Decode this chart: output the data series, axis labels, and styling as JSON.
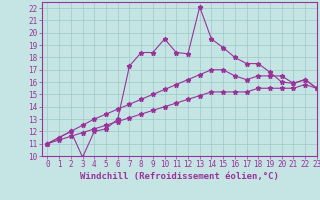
{
  "xlabel": "Windchill (Refroidissement éolien,°C)",
  "bg_color": "#c5e5e5",
  "line_color": "#993399",
  "xlim": [
    -0.5,
    23
  ],
  "ylim": [
    10,
    22.5
  ],
  "xticks": [
    0,
    1,
    2,
    3,
    4,
    5,
    6,
    7,
    8,
    9,
    10,
    11,
    12,
    13,
    14,
    15,
    16,
    17,
    18,
    19,
    20,
    21,
    22,
    23
  ],
  "yticks": [
    10,
    11,
    12,
    13,
    14,
    15,
    16,
    17,
    18,
    19,
    20,
    21,
    22
  ],
  "line1_x": [
    0,
    1,
    2,
    3,
    4,
    5,
    6,
    7,
    8,
    9,
    10,
    11,
    12,
    13,
    14,
    15,
    16,
    17,
    18,
    19,
    20,
    21,
    22,
    23
  ],
  "line1_y": [
    11.0,
    11.5,
    12.0,
    9.9,
    12.0,
    12.2,
    13.0,
    17.3,
    18.4,
    18.4,
    19.5,
    18.4,
    18.3,
    22.1,
    19.5,
    18.8,
    18.0,
    17.5,
    17.5,
    16.8,
    16.0,
    15.9,
    16.2,
    15.5
  ],
  "line2_x": [
    0,
    1,
    2,
    3,
    4,
    5,
    6,
    7,
    8,
    9,
    10,
    11,
    12,
    13,
    14,
    15,
    16,
    17,
    18,
    19,
    20,
    21,
    22,
    23
  ],
  "line2_y": [
    11.0,
    11.5,
    12.0,
    12.5,
    13.0,
    13.4,
    13.8,
    14.2,
    14.6,
    15.0,
    15.4,
    15.8,
    16.2,
    16.6,
    17.0,
    17.0,
    16.5,
    16.2,
    16.5,
    16.5,
    16.5,
    15.9,
    16.2,
    15.5
  ],
  "line3_x": [
    0,
    1,
    2,
    3,
    4,
    5,
    6,
    7,
    8,
    9,
    10,
    11,
    12,
    13,
    14,
    15,
    16,
    17,
    18,
    19,
    20,
    21,
    22,
    23
  ],
  "line3_y": [
    11.0,
    11.3,
    11.6,
    11.9,
    12.2,
    12.5,
    12.8,
    13.1,
    13.4,
    13.7,
    14.0,
    14.3,
    14.6,
    14.9,
    15.2,
    15.2,
    15.2,
    15.2,
    15.5,
    15.5,
    15.5,
    15.5,
    15.8,
    15.5
  ],
  "grid_color": "#a0c8c8",
  "tick_color": "#993399",
  "spine_color": "#993399",
  "xlabel_fontsize": 6.5,
  "tick_fontsize": 5.5,
  "marker_size": 3.5,
  "linewidth": 0.8
}
